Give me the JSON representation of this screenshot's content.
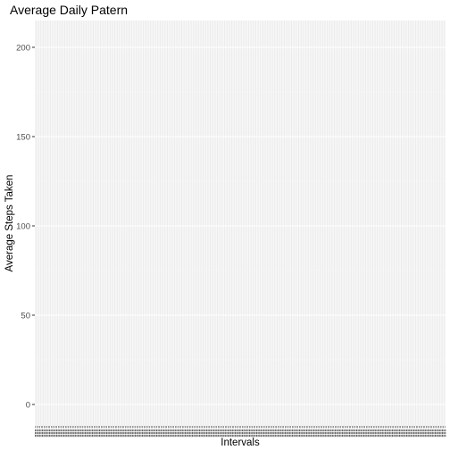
{
  "chart_data": {
    "type": "bar",
    "title": "Average Daily Patern",
    "xlabel": "Intervals",
    "ylabel": "Average Steps Taken",
    "ylim": [
      -12,
      215
    ],
    "yticks": [
      0,
      50,
      100,
      150,
      200
    ],
    "ytick_labels": [
      "0",
      "50",
      "100",
      "150",
      "200"
    ],
    "n_categories": 288,
    "x_tick_labels_legible": false,
    "grid": true,
    "colors": {
      "panel_background": "#ebebeb",
      "major_grid": "#ffffff",
      "minor_grid": "#f2f2f2",
      "tick_text": "#4d4d4d",
      "text": "#000000"
    }
  }
}
